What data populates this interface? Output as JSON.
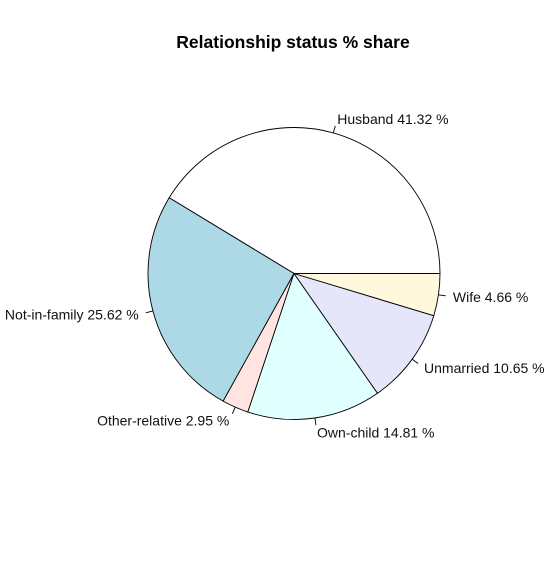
{
  "chart_data": {
    "type": "pie",
    "title": "Relationship status % share",
    "direction": "counterclockwise",
    "start": "3 o'clock",
    "slices": [
      {
        "category": "Husband",
        "value": 41.32,
        "label": "Husband 41.32 %",
        "color": "#ffffff"
      },
      {
        "category": "Not-in-family",
        "value": 25.62,
        "label": "Not-in-family 25.62 %",
        "color": "#add8e6"
      },
      {
        "category": "Other-relative",
        "value": 2.95,
        "label": "Other-relative 2.95 %",
        "color": "#ffe4e1"
      },
      {
        "category": "Own-child",
        "value": 14.81,
        "label": "Own-child 14.81 %",
        "color": "#e0ffff"
      },
      {
        "category": "Unmarried",
        "value": 10.65,
        "label": "Unmarried 10.65 %",
        "color": "#e6e6fa"
      },
      {
        "category": "Wife",
        "value": 4.66,
        "label": "Wife 4.66 %",
        "color": "#fff8dc"
      }
    ]
  }
}
